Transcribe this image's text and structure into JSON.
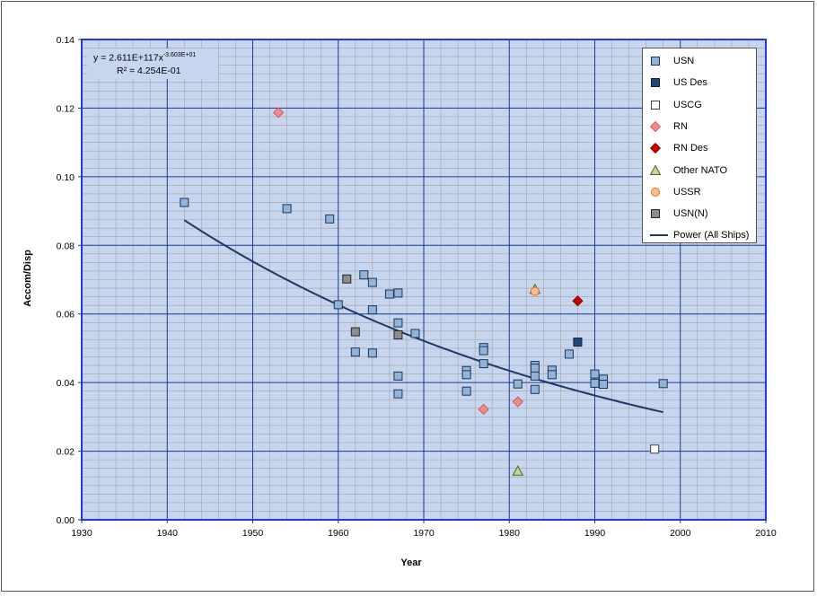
{
  "chart_data": {
    "type": "scatter",
    "xlabel": "Year",
    "ylabel": "Accom/Disp",
    "xlim": [
      1930,
      2010
    ],
    "ylim": [
      0,
      0.14
    ],
    "x_ticks": [
      1930,
      1940,
      1950,
      1960,
      1970,
      1980,
      1990,
      2000,
      2010
    ],
    "x_tick_labels": [
      "1930",
      "1940",
      "1950",
      "1960",
      "1970",
      "1980",
      "1990",
      "2000",
      "2010"
    ],
    "y_ticks": [
      0,
      0.02,
      0.04,
      0.06,
      0.08,
      0.1,
      0.12,
      0.14
    ],
    "y_tick_labels": [
      "0.00",
      "0.02",
      "0.04",
      "0.06",
      "0.08",
      "0.10",
      "0.12",
      "0.14"
    ],
    "grid": true,
    "legend_position": "top-right",
    "series": [
      {
        "name": "USN",
        "marker": "square",
        "fill": "#95b3d7",
        "stroke": "#17375e",
        "points": [
          [
            1942,
            0.0925
          ],
          [
            1954,
            0.0907
          ],
          [
            1959,
            0.0877
          ],
          [
            1960,
            0.0627
          ],
          [
            1962,
            0.0489
          ],
          [
            1963,
            0.0714
          ],
          [
            1964,
            0.0692
          ],
          [
            1964,
            0.0612
          ],
          [
            1964,
            0.0486
          ],
          [
            1966,
            0.0658
          ],
          [
            1967,
            0.0661
          ],
          [
            1967,
            0.0574
          ],
          [
            1967,
            0.0419
          ],
          [
            1967,
            0.0367
          ],
          [
            1969,
            0.0543
          ],
          [
            1975,
            0.0435
          ],
          [
            1975,
            0.0423
          ],
          [
            1975,
            0.0375
          ],
          [
            1977,
            0.0502
          ],
          [
            1977,
            0.0493
          ],
          [
            1977,
            0.0455
          ],
          [
            1981,
            0.0396
          ],
          [
            1983,
            0.045
          ],
          [
            1983,
            0.0442
          ],
          [
            1983,
            0.0419
          ],
          [
            1983,
            0.038
          ],
          [
            1985,
            0.0436
          ],
          [
            1985,
            0.0423
          ],
          [
            1987,
            0.0483
          ],
          [
            1990,
            0.0425
          ],
          [
            1990,
            0.0398
          ],
          [
            1991,
            0.041
          ],
          [
            1991,
            0.0395
          ],
          [
            1998,
            0.0397
          ]
        ]
      },
      {
        "name": "US Des",
        "marker": "square",
        "fill": "#1f497d",
        "stroke": "#0f243e",
        "points": [
          [
            1988,
            0.0518
          ]
        ]
      },
      {
        "name": "USCG",
        "marker": "square",
        "fill": "#ffffff",
        "stroke": "#404040",
        "points": [
          [
            1997,
            0.0206
          ]
        ]
      },
      {
        "name": "RN",
        "marker": "diamond",
        "fill": "#f28a8a",
        "stroke": "#c0504d",
        "points": [
          [
            1953,
            0.1187
          ],
          [
            1977,
            0.0322
          ],
          [
            1981,
            0.0344
          ]
        ]
      },
      {
        "name": "RN Des",
        "marker": "diamond",
        "fill": "#c00000",
        "stroke": "#7f0000",
        "points": [
          [
            1988,
            0.0638
          ]
        ]
      },
      {
        "name": "Other NATO",
        "marker": "triangle",
        "fill": "#c3d69b",
        "stroke": "#4f6228",
        "points": [
          [
            1983,
            0.0672
          ],
          [
            1981,
            0.0142
          ]
        ]
      },
      {
        "name": "USSR",
        "marker": "circle",
        "fill": "#fac090",
        "stroke": "#e46c0a",
        "points": [
          [
            1983,
            0.0666
          ]
        ]
      },
      {
        "name": "USN(N)",
        "marker": "square",
        "fill": "#8c8c8c",
        "stroke": "#262626",
        "points": [
          [
            1961,
            0.0702
          ],
          [
            1962,
            0.0548
          ],
          [
            1967,
            0.0539
          ]
        ]
      },
      {
        "name": "Power (All Ships)",
        "marker": "line",
        "stroke": "#1f3864",
        "fit": {
          "a": 2.611e+117,
          "b": -36.03,
          "x_range": [
            1942,
            1998
          ]
        }
      }
    ],
    "annotation": {
      "equation": "y = 2.611E+117x",
      "exponent": "-3.603E+01",
      "r2": "R² = 4.254E-01"
    }
  }
}
